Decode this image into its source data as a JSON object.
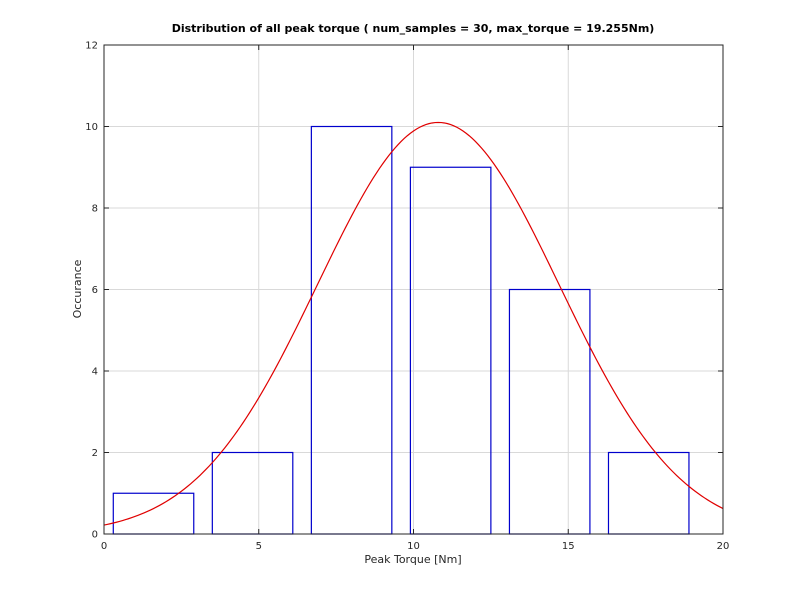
{
  "chart_data": {
    "type": "bar",
    "title": "Distribution of all peak torque ( num_samples = 30, max_torque = 19.255Nm)",
    "xlabel": "Peak Torque [Nm]",
    "ylabel": "Occurance",
    "xlim": [
      0,
      20
    ],
    "ylim": [
      0,
      12
    ],
    "xticks": [
      0,
      5,
      10,
      15,
      20
    ],
    "yticks": [
      0,
      2,
      4,
      6,
      8,
      10,
      12
    ],
    "grid": true,
    "bins": [
      {
        "x0": 0.3,
        "x1": 2.9,
        "value": 1
      },
      {
        "x0": 3.5,
        "x1": 6.1,
        "value": 2
      },
      {
        "x0": 6.7,
        "x1": 9.3,
        "value": 10
      },
      {
        "x0": 9.9,
        "x1": 12.5,
        "value": 9
      },
      {
        "x0": 13.1,
        "x1": 15.7,
        "value": 6
      },
      {
        "x0": 16.3,
        "x1": 18.9,
        "value": 2
      }
    ],
    "fit_curve": {
      "type": "normal",
      "mean": 10.8,
      "std": 3.9,
      "peak": 10.1
    },
    "colors": {
      "bars": "#0000cc",
      "fit": "#e00000",
      "grid": "#d9d9d9",
      "axis": "#262626"
    }
  }
}
